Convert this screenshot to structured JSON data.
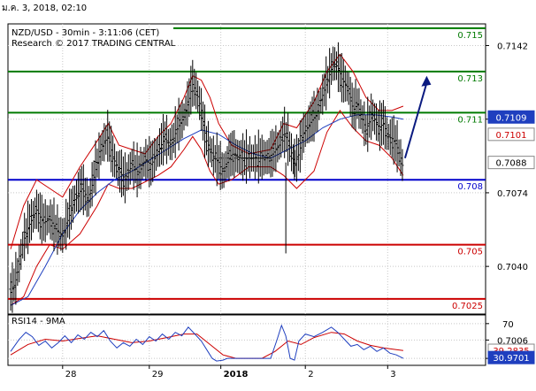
{
  "window": {
    "topline": "ม.ค. 3, 2018, 02:10"
  },
  "chart_data": {
    "type": "line",
    "title": "NZD/USD - 30min - 3:11:06 (CET)",
    "subtitle": "Research © 2017 TRADING CENTRAL",
    "price_axis": {
      "ylim": [
        0.7018,
        0.7152
      ],
      "ticks": [
        "0.7142",
        "0.7108",
        "0.7074",
        "0.7040",
        "0.7006"
      ],
      "tick_values": [
        0.7142,
        0.7108,
        0.7074,
        0.704,
        0.7006
      ]
    },
    "levels": [
      {
        "label": "0.715",
        "value": 0.715,
        "color": "#007a00"
      },
      {
        "label": "0.713",
        "value": 0.713,
        "color": "#007a00"
      },
      {
        "label": "0.711",
        "value": 0.7111,
        "color": "#007a00"
      },
      {
        "label": "0.708",
        "value": 0.708,
        "color": "#0000cc"
      },
      {
        "label": "0.705",
        "value": 0.705,
        "color": "#cc0000"
      },
      {
        "label": "0.7025",
        "value": 0.7025,
        "color": "#cc0000"
      }
    ],
    "price_tags": [
      {
        "label": "0.7109",
        "value": 0.7109,
        "bg": "#1f3fbf",
        "fg": "#ffffff"
      },
      {
        "label": "0.7101",
        "value": 0.7101,
        "bg": "#ffffff",
        "fg": "#cc0000"
      },
      {
        "label": "0.7088",
        "value": 0.7088,
        "bg": "#ffffff",
        "fg": "#000000"
      }
    ],
    "x_labels": [
      {
        "label": "28",
        "pos": 0.12
      },
      {
        "label": "29",
        "pos": 0.32
      },
      {
        "label": "2018",
        "pos": 0.485
      },
      {
        "label": "2",
        "pos": 0.68
      },
      {
        "label": "3",
        "pos": 0.87
      }
    ],
    "price_series": [
      {
        "t": 0.0,
        "v": 0.7028
      },
      {
        "t": 0.01,
        "v": 0.7032
      },
      {
        "t": 0.02,
        "v": 0.7041
      },
      {
        "t": 0.03,
        "v": 0.7052
      },
      {
        "t": 0.045,
        "v": 0.706
      },
      {
        "t": 0.06,
        "v": 0.7066
      },
      {
        "t": 0.075,
        "v": 0.706
      },
      {
        "t": 0.09,
        "v": 0.7062
      },
      {
        "t": 0.105,
        "v": 0.7057
      },
      {
        "t": 0.12,
        "v": 0.7054
      },
      {
        "t": 0.135,
        "v": 0.7063
      },
      {
        "t": 0.15,
        "v": 0.7072
      },
      {
        "t": 0.165,
        "v": 0.7076
      },
      {
        "t": 0.18,
        "v": 0.707
      },
      {
        "t": 0.195,
        "v": 0.7084
      },
      {
        "t": 0.21,
        "v": 0.7095
      },
      {
        "t": 0.225,
        "v": 0.71
      },
      {
        "t": 0.235,
        "v": 0.7091
      },
      {
        "t": 0.25,
        "v": 0.7084
      },
      {
        "t": 0.265,
        "v": 0.708
      },
      {
        "t": 0.28,
        "v": 0.7087
      },
      {
        "t": 0.295,
        "v": 0.7083
      },
      {
        "t": 0.31,
        "v": 0.7089
      },
      {
        "t": 0.325,
        "v": 0.7087
      },
      {
        "t": 0.34,
        "v": 0.7093
      },
      {
        "t": 0.355,
        "v": 0.7099
      },
      {
        "t": 0.37,
        "v": 0.7096
      },
      {
        "t": 0.385,
        "v": 0.7104
      },
      {
        "t": 0.4,
        "v": 0.7109
      },
      {
        "t": 0.41,
        "v": 0.7116
      },
      {
        "t": 0.42,
        "v": 0.7124
      },
      {
        "t": 0.43,
        "v": 0.712
      },
      {
        "t": 0.44,
        "v": 0.7112
      },
      {
        "t": 0.45,
        "v": 0.7099
      },
      {
        "t": 0.46,
        "v": 0.7094
      },
      {
        "t": 0.47,
        "v": 0.709
      },
      {
        "t": 0.48,
        "v": 0.7088
      },
      {
        "t": 0.49,
        "v": 0.7083
      },
      {
        "t": 0.5,
        "v": 0.7088
      },
      {
        "t": 0.51,
        "v": 0.7092
      },
      {
        "t": 0.53,
        "v": 0.709
      },
      {
        "t": 0.55,
        "v": 0.709
      },
      {
        "t": 0.57,
        "v": 0.709
      },
      {
        "t": 0.59,
        "v": 0.709
      },
      {
        "t": 0.605,
        "v": 0.7092
      },
      {
        "t": 0.62,
        "v": 0.7096
      },
      {
        "t": 0.63,
        "v": 0.7102
      },
      {
        "t": 0.64,
        "v": 0.7098
      },
      {
        "t": 0.65,
        "v": 0.7091
      },
      {
        "t": 0.655,
        "v": 0.7087
      },
      {
        "t": 0.665,
        "v": 0.7092
      },
      {
        "t": 0.675,
        "v": 0.7101
      },
      {
        "t": 0.69,
        "v": 0.7106
      },
      {
        "t": 0.705,
        "v": 0.711
      },
      {
        "t": 0.72,
        "v": 0.7119
      },
      {
        "t": 0.735,
        "v": 0.7128
      },
      {
        "t": 0.745,
        "v": 0.7134
      },
      {
        "t": 0.755,
        "v": 0.7132
      },
      {
        "t": 0.765,
        "v": 0.7126
      },
      {
        "t": 0.78,
        "v": 0.7122
      },
      {
        "t": 0.79,
        "v": 0.7112
      },
      {
        "t": 0.8,
        "v": 0.7115
      },
      {
        "t": 0.81,
        "v": 0.7109
      },
      {
        "t": 0.82,
        "v": 0.7103
      },
      {
        "t": 0.835,
        "v": 0.711
      },
      {
        "t": 0.85,
        "v": 0.7104
      },
      {
        "t": 0.86,
        "v": 0.7106
      },
      {
        "t": 0.87,
        "v": 0.71
      },
      {
        "t": 0.88,
        "v": 0.7099
      },
      {
        "t": 0.89,
        "v": 0.7096
      },
      {
        "t": 0.9,
        "v": 0.709
      },
      {
        "t": 0.906,
        "v": 0.7085
      }
    ],
    "bollinger_upper": [
      {
        "t": 0.0,
        "v": 0.7048
      },
      {
        "t": 0.03,
        "v": 0.7068
      },
      {
        "t": 0.06,
        "v": 0.708
      },
      {
        "t": 0.09,
        "v": 0.7076
      },
      {
        "t": 0.12,
        "v": 0.7072
      },
      {
        "t": 0.16,
        "v": 0.7086
      },
      {
        "t": 0.2,
        "v": 0.7098
      },
      {
        "t": 0.225,
        "v": 0.7106
      },
      {
        "t": 0.25,
        "v": 0.7096
      },
      {
        "t": 0.28,
        "v": 0.7094
      },
      {
        "t": 0.31,
        "v": 0.7092
      },
      {
        "t": 0.34,
        "v": 0.71
      },
      {
        "t": 0.37,
        "v": 0.7106
      },
      {
        "t": 0.4,
        "v": 0.7118
      },
      {
        "t": 0.42,
        "v": 0.7128
      },
      {
        "t": 0.44,
        "v": 0.7126
      },
      {
        "t": 0.46,
        "v": 0.7118
      },
      {
        "t": 0.48,
        "v": 0.7106
      },
      {
        "t": 0.51,
        "v": 0.7096
      },
      {
        "t": 0.55,
        "v": 0.7092
      },
      {
        "t": 0.6,
        "v": 0.7094
      },
      {
        "t": 0.63,
        "v": 0.7106
      },
      {
        "t": 0.66,
        "v": 0.7104
      },
      {
        "t": 0.7,
        "v": 0.7116
      },
      {
        "t": 0.73,
        "v": 0.713
      },
      {
        "t": 0.76,
        "v": 0.7138
      },
      {
        "t": 0.79,
        "v": 0.713
      },
      {
        "t": 0.82,
        "v": 0.7118
      },
      {
        "t": 0.85,
        "v": 0.7112
      },
      {
        "t": 0.88,
        "v": 0.7112
      },
      {
        "t": 0.906,
        "v": 0.7114
      }
    ],
    "bollinger_lower": [
      {
        "t": 0.0,
        "v": 0.7022
      },
      {
        "t": 0.03,
        "v": 0.7026
      },
      {
        "t": 0.06,
        "v": 0.704
      },
      {
        "t": 0.09,
        "v": 0.705
      },
      {
        "t": 0.12,
        "v": 0.7048
      },
      {
        "t": 0.16,
        "v": 0.7055
      },
      {
        "t": 0.2,
        "v": 0.7068
      },
      {
        "t": 0.225,
        "v": 0.7078
      },
      {
        "t": 0.25,
        "v": 0.7076
      },
      {
        "t": 0.28,
        "v": 0.7076
      },
      {
        "t": 0.31,
        "v": 0.7079
      },
      {
        "t": 0.34,
        "v": 0.7082
      },
      {
        "t": 0.37,
        "v": 0.7086
      },
      {
        "t": 0.4,
        "v": 0.7094
      },
      {
        "t": 0.42,
        "v": 0.71
      },
      {
        "t": 0.44,
        "v": 0.7094
      },
      {
        "t": 0.46,
        "v": 0.7084
      },
      {
        "t": 0.48,
        "v": 0.7078
      },
      {
        "t": 0.51,
        "v": 0.708
      },
      {
        "t": 0.55,
        "v": 0.7086
      },
      {
        "t": 0.6,
        "v": 0.7086
      },
      {
        "t": 0.63,
        "v": 0.7082
      },
      {
        "t": 0.66,
        "v": 0.7076
      },
      {
        "t": 0.7,
        "v": 0.7084
      },
      {
        "t": 0.73,
        "v": 0.7102
      },
      {
        "t": 0.76,
        "v": 0.7112
      },
      {
        "t": 0.79,
        "v": 0.7104
      },
      {
        "t": 0.82,
        "v": 0.7098
      },
      {
        "t": 0.85,
        "v": 0.7096
      },
      {
        "t": 0.88,
        "v": 0.709
      },
      {
        "t": 0.906,
        "v": 0.7082
      }
    ],
    "moving_average": [
      {
        "t": 0.0,
        "v": 0.7022
      },
      {
        "t": 0.04,
        "v": 0.7026
      },
      {
        "t": 0.08,
        "v": 0.704
      },
      {
        "t": 0.12,
        "v": 0.7055
      },
      {
        "t": 0.16,
        "v": 0.7066
      },
      {
        "t": 0.2,
        "v": 0.7074
      },
      {
        "t": 0.24,
        "v": 0.708
      },
      {
        "t": 0.28,
        "v": 0.7084
      },
      {
        "t": 0.32,
        "v": 0.7089
      },
      {
        "t": 0.36,
        "v": 0.7094
      },
      {
        "t": 0.4,
        "v": 0.7099
      },
      {
        "t": 0.44,
        "v": 0.7103
      },
      {
        "t": 0.48,
        "v": 0.7101
      },
      {
        "t": 0.52,
        "v": 0.7096
      },
      {
        "t": 0.56,
        "v": 0.7092
      },
      {
        "t": 0.6,
        "v": 0.709
      },
      {
        "t": 0.64,
        "v": 0.7094
      },
      {
        "t": 0.68,
        "v": 0.7098
      },
      {
        "t": 0.72,
        "v": 0.7104
      },
      {
        "t": 0.76,
        "v": 0.7108
      },
      {
        "t": 0.8,
        "v": 0.711
      },
      {
        "t": 0.84,
        "v": 0.711
      },
      {
        "t": 0.88,
        "v": 0.7109
      },
      {
        "t": 0.906,
        "v": 0.7108
      }
    ],
    "spike_wicks": [
      {
        "t": 0.635,
        "low": 0.7046,
        "high": 0.7088
      },
      {
        "t": 0.655,
        "low": 0.708,
        "high": 0.7099
      }
    ],
    "dotted_segment": {
      "t1": 0.47,
      "t2": 0.6,
      "v": 0.709
    },
    "forecast_arrow": {
      "t1": 0.91,
      "v1": 0.709,
      "t2": 0.96,
      "v2": 0.7128
    },
    "rsi": {
      "title": "RSI14 - 9MA",
      "ylim": [
        22,
        80
      ],
      "ticks": [
        "70",
        "30"
      ],
      "tick_values": [
        70,
        30
      ],
      "tags": [
        {
          "label": "39.2835",
          "value": 39.28,
          "bg": "#ffffff",
          "fg": "#cc0000"
        },
        {
          "label": "30.9701",
          "value": 30.97,
          "bg": "#1f3fbf",
          "fg": "#ffffff"
        }
      ],
      "rsi_line": [
        {
          "t": 0.0,
          "v": 38
        },
        {
          "t": 0.02,
          "v": 52
        },
        {
          "t": 0.035,
          "v": 60
        },
        {
          "t": 0.05,
          "v": 55
        },
        {
          "t": 0.065,
          "v": 45
        },
        {
          "t": 0.08,
          "v": 50
        },
        {
          "t": 0.095,
          "v": 42
        },
        {
          "t": 0.11,
          "v": 48
        },
        {
          "t": 0.125,
          "v": 56
        },
        {
          "t": 0.14,
          "v": 48
        },
        {
          "t": 0.155,
          "v": 57
        },
        {
          "t": 0.17,
          "v": 52
        },
        {
          "t": 0.185,
          "v": 60
        },
        {
          "t": 0.2,
          "v": 55
        },
        {
          "t": 0.215,
          "v": 62
        },
        {
          "t": 0.23,
          "v": 50
        },
        {
          "t": 0.245,
          "v": 42
        },
        {
          "t": 0.26,
          "v": 48
        },
        {
          "t": 0.275,
          "v": 44
        },
        {
          "t": 0.29,
          "v": 52
        },
        {
          "t": 0.305,
          "v": 46
        },
        {
          "t": 0.32,
          "v": 55
        },
        {
          "t": 0.335,
          "v": 50
        },
        {
          "t": 0.35,
          "v": 58
        },
        {
          "t": 0.365,
          "v": 52
        },
        {
          "t": 0.38,
          "v": 60
        },
        {
          "t": 0.395,
          "v": 56
        },
        {
          "t": 0.41,
          "v": 66
        },
        {
          "t": 0.425,
          "v": 58
        },
        {
          "t": 0.44,
          "v": 50
        },
        {
          "t": 0.455,
          "v": 38
        },
        {
          "t": 0.465,
          "v": 30
        },
        {
          "t": 0.475,
          "v": 27
        },
        {
          "t": 0.49,
          "v": 28
        },
        {
          "t": 0.5,
          "v": 30
        },
        {
          "t": 0.54,
          "v": 30
        },
        {
          "t": 0.58,
          "v": 30
        },
        {
          "t": 0.6,
          "v": 30
        },
        {
          "t": 0.615,
          "v": 52
        },
        {
          "t": 0.625,
          "v": 68
        },
        {
          "t": 0.635,
          "v": 56
        },
        {
          "t": 0.645,
          "v": 30
        },
        {
          "t": 0.655,
          "v": 28
        },
        {
          "t": 0.665,
          "v": 50
        },
        {
          "t": 0.68,
          "v": 58
        },
        {
          "t": 0.7,
          "v": 55
        },
        {
          "t": 0.72,
          "v": 60
        },
        {
          "t": 0.74,
          "v": 66
        },
        {
          "t": 0.755,
          "v": 60
        },
        {
          "t": 0.77,
          "v": 52
        },
        {
          "t": 0.785,
          "v": 44
        },
        {
          "t": 0.8,
          "v": 46
        },
        {
          "t": 0.815,
          "v": 40
        },
        {
          "t": 0.83,
          "v": 44
        },
        {
          "t": 0.845,
          "v": 38
        },
        {
          "t": 0.86,
          "v": 42
        },
        {
          "t": 0.875,
          "v": 36
        },
        {
          "t": 0.89,
          "v": 34
        },
        {
          "t": 0.906,
          "v": 30
        }
      ],
      "ma_line": [
        {
          "t": 0.0,
          "v": 34
        },
        {
          "t": 0.04,
          "v": 46
        },
        {
          "t": 0.08,
          "v": 52
        },
        {
          "t": 0.12,
          "v": 50
        },
        {
          "t": 0.16,
          "v": 53
        },
        {
          "t": 0.2,
          "v": 56
        },
        {
          "t": 0.24,
          "v": 52
        },
        {
          "t": 0.28,
          "v": 48
        },
        {
          "t": 0.32,
          "v": 50
        },
        {
          "t": 0.36,
          "v": 54
        },
        {
          "t": 0.4,
          "v": 58
        },
        {
          "t": 0.43,
          "v": 58
        },
        {
          "t": 0.46,
          "v": 46
        },
        {
          "t": 0.49,
          "v": 34
        },
        {
          "t": 0.52,
          "v": 30
        },
        {
          "t": 0.58,
          "v": 30
        },
        {
          "t": 0.61,
          "v": 38
        },
        {
          "t": 0.64,
          "v": 50
        },
        {
          "t": 0.67,
          "v": 46
        },
        {
          "t": 0.7,
          "v": 54
        },
        {
          "t": 0.74,
          "v": 60
        },
        {
          "t": 0.77,
          "v": 58
        },
        {
          "t": 0.8,
          "v": 50
        },
        {
          "t": 0.83,
          "v": 45
        },
        {
          "t": 0.86,
          "v": 42
        },
        {
          "t": 0.89,
          "v": 40
        },
        {
          "t": 0.906,
          "v": 39
        }
      ]
    },
    "grid": true,
    "colors": {
      "price": "#000000",
      "bollinger": "#cc0000",
      "moving_average": "#1f3fbf",
      "arrow": "#0a1a80"
    }
  }
}
